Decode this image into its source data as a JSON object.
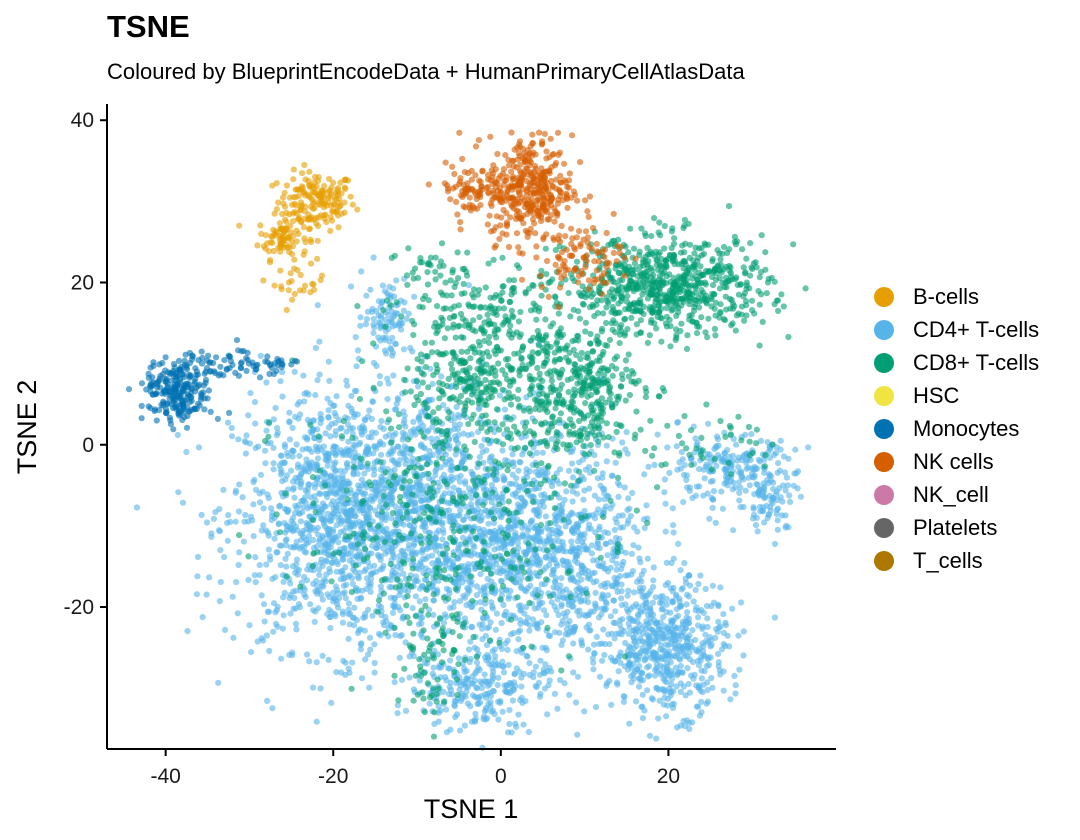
{
  "chart_data": {
    "type": "scatter",
    "title": "TSNE",
    "subtitle": "Coloured by BlueprintEncodeData + HumanPrimaryCellAtlasData",
    "xlabel": "TSNE 1",
    "ylabel": "TSNE 2",
    "xlim": [
      -47,
      40
    ],
    "ylim": [
      -37.5,
      42
    ],
    "x_ticks": [
      -40,
      -20,
      0,
      20
    ],
    "y_ticks": [
      -20,
      0,
      20,
      40
    ],
    "legend_position": "right",
    "grid": false,
    "series": [
      {
        "name": "B-cells",
        "color": "#E69F00",
        "clusters": [
          {
            "cx": -22,
            "cy": 30,
            "sx": 2.3,
            "sy": 1.8,
            "n": 160
          },
          {
            "cx": -26,
            "cy": 25.5,
            "sx": 1.5,
            "sy": 1.3,
            "n": 80
          },
          {
            "cx": -24,
            "cy": 20,
            "sx": 1.5,
            "sy": 1.0,
            "n": 25
          }
        ]
      },
      {
        "name": "CD4+ T-cells",
        "color": "#56B4E9",
        "clusters": [
          {
            "cx": -19,
            "cy": -9,
            "sx": 6.5,
            "sy": 8,
            "n": 1300
          },
          {
            "cx": -6,
            "cy": -9,
            "sx": 6,
            "sy": 8,
            "n": 900
          },
          {
            "cx": 7,
            "cy": -14,
            "sx": 6,
            "sy": 8,
            "n": 900
          },
          {
            "cx": 20,
            "cy": -25,
            "sx": 3.5,
            "sy": 4,
            "n": 500
          },
          {
            "cx": -3,
            "cy": -30,
            "sx": 4,
            "sy": 2.5,
            "n": 200
          },
          {
            "cx": 27,
            "cy": -3,
            "sx": 4,
            "sy": 2,
            "n": 200
          },
          {
            "cx": 32,
            "cy": -7,
            "sx": 1.8,
            "sy": 2,
            "n": 70
          },
          {
            "cx": -13.5,
            "cy": 16,
            "sx": 1.5,
            "sy": 2.5,
            "n": 90
          }
        ]
      },
      {
        "name": "CD8+ T-cells",
        "color": "#009E73",
        "clusters": [
          {
            "cx": 20,
            "cy": 19.5,
            "sx": 6,
            "sy": 3,
            "n": 700
          },
          {
            "cx": 9,
            "cy": 7,
            "sx": 4,
            "sy": 4,
            "n": 380
          },
          {
            "cx": -3,
            "cy": 8,
            "sx": 4,
            "sy": 3,
            "n": 220
          },
          {
            "cx": -2,
            "cy": 16,
            "sx": 5,
            "sy": 3,
            "n": 180
          },
          {
            "cx": -6,
            "cy": -8,
            "sx": 9,
            "sy": 8,
            "n": 380
          },
          {
            "cx": -8,
            "cy": -25,
            "sx": 2,
            "sy": 5,
            "n": 70
          },
          {
            "cx": 25,
            "cy": 0,
            "sx": 4,
            "sy": 2,
            "n": 40
          },
          {
            "cx": -8,
            "cy": 22,
            "sx": 2,
            "sy": 1.5,
            "n": 35
          }
        ]
      },
      {
        "name": "HSC",
        "color": "#F0E442",
        "clusters": []
      },
      {
        "name": "Monocytes",
        "color": "#0072B2",
        "clusters": [
          {
            "cx": -38.5,
            "cy": 6.5,
            "sx": 2,
            "sy": 1.9,
            "n": 230
          },
          {
            "cx": -33,
            "cy": 10,
            "sx": 2.5,
            "sy": 1.2,
            "n": 50
          },
          {
            "cx": -27.5,
            "cy": 9.5,
            "sx": 1.5,
            "sy": 0.7,
            "n": 25
          }
        ]
      },
      {
        "name": "NK cells",
        "color": "#D55E00",
        "clusters": [
          {
            "cx": 3.5,
            "cy": 31.5,
            "sx": 2.5,
            "sy": 3.3,
            "n": 360
          },
          {
            "cx": -3.5,
            "cy": 31.5,
            "sx": 2.2,
            "sy": 1.5,
            "n": 80
          },
          {
            "cx": 9.5,
            "cy": 23,
            "sx": 2.5,
            "sy": 2,
            "n": 90
          }
        ]
      },
      {
        "name": "NK_cell",
        "color": "#CC79A7",
        "clusters": []
      },
      {
        "name": "Platelets",
        "color": "#666666",
        "clusters": []
      },
      {
        "name": "T_cells",
        "color": "#AD7700",
        "clusters": []
      }
    ]
  }
}
